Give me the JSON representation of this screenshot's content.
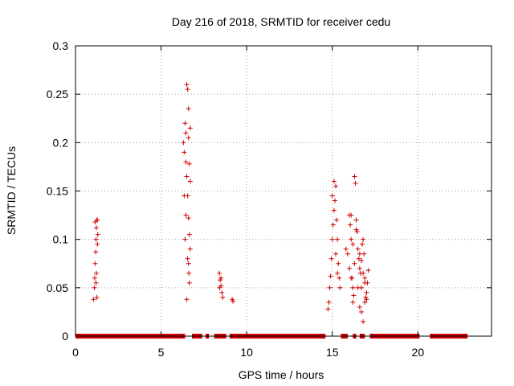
{
  "chart_data": {
    "type": "scatter",
    "title": "Day 216 of 2018, SRMTID for receiver cedu",
    "xlabel": "GPS time / hours",
    "ylabel": "SRMTID / TECUs",
    "xlim": [
      0,
      24.3
    ],
    "ylim": [
      0,
      0.3
    ],
    "xticks": [
      "0",
      "5",
      "10",
      "15",
      "20"
    ],
    "yticks": [
      "0",
      "0.05",
      "0.1",
      "0.15",
      "0.2",
      "0.25",
      "0.3"
    ],
    "grid": true,
    "marker": "plus",
    "color": "#cc0000",
    "series": [
      {
        "name": "SRMTID",
        "points": [
          [
            1.05,
            0.038
          ],
          [
            1.1,
            0.05
          ],
          [
            1.12,
            0.06
          ],
          [
            1.15,
            0.075
          ],
          [
            1.18,
            0.087
          ],
          [
            1.2,
            0.1
          ],
          [
            1.22,
            0.112
          ],
          [
            1.25,
            0.12
          ],
          [
            1.28,
            0.12
          ],
          [
            1.3,
            0.105
          ],
          [
            1.2,
            0.055
          ],
          [
            1.22,
            0.065
          ],
          [
            1.25,
            0.04
          ],
          [
            1.15,
            0.118
          ],
          [
            1.28,
            0.095
          ],
          [
            6.3,
            0.2
          ],
          [
            6.35,
            0.19
          ],
          [
            6.4,
            0.22
          ],
          [
            6.45,
            0.18
          ],
          [
            6.5,
            0.165
          ],
          [
            6.55,
            0.145
          ],
          [
            6.5,
            0.26
          ],
          [
            6.55,
            0.255
          ],
          [
            6.6,
            0.235
          ],
          [
            6.45,
            0.21
          ],
          [
            6.6,
            0.205
          ],
          [
            6.65,
            0.178
          ],
          [
            6.7,
            0.16
          ],
          [
            6.6,
            0.122
          ],
          [
            6.65,
            0.105
          ],
          [
            6.7,
            0.09
          ],
          [
            6.55,
            0.08
          ],
          [
            6.6,
            0.075
          ],
          [
            6.62,
            0.065
          ],
          [
            6.65,
            0.055
          ],
          [
            6.5,
            0.038
          ],
          [
            6.4,
            0.1
          ],
          [
            6.45,
            0.125
          ],
          [
            6.7,
            0.215
          ],
          [
            6.35,
            0.145
          ],
          [
            8.4,
            0.065
          ],
          [
            8.45,
            0.058
          ],
          [
            8.5,
            0.052
          ],
          [
            8.55,
            0.045
          ],
          [
            8.6,
            0.04
          ],
          [
            8.42,
            0.05
          ],
          [
            8.5,
            0.06
          ],
          [
            9.15,
            0.038
          ],
          [
            9.2,
            0.036
          ],
          [
            14.75,
            0.028
          ],
          [
            14.8,
            0.035
          ],
          [
            14.85,
            0.05
          ],
          [
            14.9,
            0.062
          ],
          [
            14.95,
            0.08
          ],
          [
            15.0,
            0.1
          ],
          [
            15.05,
            0.115
          ],
          [
            15.1,
            0.13
          ],
          [
            15.15,
            0.14
          ],
          [
            15.2,
            0.155
          ],
          [
            15.25,
            0.12
          ],
          [
            15.3,
            0.1
          ],
          [
            15.35,
            0.075
          ],
          [
            15.4,
            0.06
          ],
          [
            15.45,
            0.05
          ],
          [
            15.0,
            0.145
          ],
          [
            15.1,
            0.16
          ],
          [
            15.2,
            0.085
          ],
          [
            15.3,
            0.065
          ],
          [
            15.8,
            0.09
          ],
          [
            15.9,
            0.085
          ],
          [
            16.0,
            0.125
          ],
          [
            16.05,
            0.115
          ],
          [
            16.1,
            0.1
          ],
          [
            16.15,
            0.06
          ],
          [
            16.2,
            0.05
          ],
          [
            16.25,
            0.042
          ],
          [
            16.0,
            0.07
          ],
          [
            16.1,
            0.06
          ],
          [
            16.3,
            0.165
          ],
          [
            16.35,
            0.158
          ],
          [
            16.4,
            0.12
          ],
          [
            16.45,
            0.108
          ],
          [
            16.5,
            0.09
          ],
          [
            16.55,
            0.08
          ],
          [
            16.6,
            0.07
          ],
          [
            16.65,
            0.065
          ],
          [
            16.7,
            0.05
          ],
          [
            16.75,
            0.095
          ],
          [
            16.8,
            0.1
          ],
          [
            16.85,
            0.085
          ],
          [
            16.9,
            0.06
          ],
          [
            16.95,
            0.04
          ],
          [
            17.0,
            0.045
          ],
          [
            17.05,
            0.055
          ],
          [
            17.1,
            0.068
          ],
          [
            16.5,
            0.05
          ],
          [
            16.6,
            0.03
          ],
          [
            16.7,
            0.025
          ],
          [
            16.8,
            0.015
          ],
          [
            16.9,
            0.035
          ],
          [
            16.2,
            0.095
          ],
          [
            16.3,
            0.075
          ],
          [
            16.4,
            0.11
          ],
          [
            16.6,
            0.085
          ],
          [
            16.7,
            0.078
          ],
          [
            16.8,
            0.065
          ],
          [
            16.9,
            0.055
          ],
          [
            17.0,
            0.038
          ],
          [
            16.1,
            0.125
          ],
          [
            16.2,
            0.035
          ]
        ],
        "zero_segments": [
          [
            0,
            6.4
          ],
          [
            6.8,
            7.4
          ],
          [
            7.6,
            7.8
          ],
          [
            8.1,
            8.8
          ],
          [
            9.0,
            14.6
          ],
          [
            15.5,
            15.9
          ],
          [
            16.2,
            16.4
          ],
          [
            16.6,
            16.9
          ],
          [
            17.2,
            20.1
          ],
          [
            20.7,
            22.9
          ]
        ]
      }
    ]
  }
}
